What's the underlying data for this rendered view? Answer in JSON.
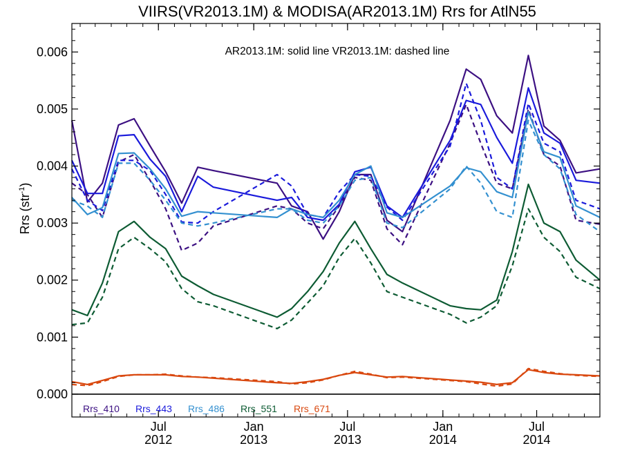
{
  "chart_data": {
    "type": "line",
    "title": "VIIRS(VR2013.1M) & MODISA(AR2013.1M)  Rrs for AtlN55",
    "annotation": "AR2013.1M: solid line   VR2013.1M: dashed line",
    "ylabel_main": "Rrs (str",
    "ylabel_sup": "-1",
    "ylabel_tail": ")",
    "xlim": [
      "2012-01-16",
      "2014-10-31"
    ],
    "ylim": [
      -0.0004,
      0.0065
    ],
    "yticks": [
      0.0,
      0.001,
      0.002,
      0.003,
      0.004,
      0.005,
      0.006
    ],
    "ytick_labels": [
      "0.000",
      "0.001",
      "0.002",
      "0.003",
      "0.004",
      "0.005",
      "0.006"
    ],
    "xticks": [
      {
        "date": "2012-07-01",
        "month": "Jul",
        "year": "2012"
      },
      {
        "date": "2013-01-01",
        "month": "Jan",
        "year": "2013"
      },
      {
        "date": "2013-07-01",
        "month": "Jul",
        "year": "2013"
      },
      {
        "date": "2014-01-01",
        "month": "Jan",
        "year": "2014"
      },
      {
        "date": "2014-07-01",
        "month": "Jul",
        "year": "2014"
      }
    ],
    "zero_line": 0.0,
    "series": [
      {
        "name": "Rrs_410",
        "color": "#3c1082",
        "solid": {
          "x": [
            "2012-01-16",
            "2012-02-15",
            "2012-03-15",
            "2012-04-15",
            "2012-05-15",
            "2012-06-15",
            "2012-07-15",
            "2012-08-15",
            "2012-09-15",
            "2012-10-15",
            "2013-02-15",
            "2013-03-15",
            "2013-04-15",
            "2013-05-15",
            "2013-06-15",
            "2013-07-15",
            "2013-08-15",
            "2013-09-15",
            "2013-10-15",
            "2014-01-15",
            "2014-02-15",
            "2014-03-15",
            "2014-04-15",
            "2014-05-15",
            "2014-06-15",
            "2014-07-15",
            "2014-08-15",
            "2014-09-15",
            "2014-10-31"
          ],
          "y": [
            0.0048,
            0.00337,
            0.0037,
            0.00472,
            0.00483,
            0.00435,
            0.0039,
            0.00335,
            0.00398,
            0.00392,
            0.0037,
            0.0033,
            0.0032,
            0.00272,
            0.0032,
            0.00385,
            0.00385,
            0.00305,
            0.00285,
            0.0048,
            0.0057,
            0.00552,
            0.00488,
            0.00458,
            0.00594,
            0.0047,
            0.00445,
            0.00388,
            0.00395
          ]
        },
        "dashed": {
          "x": [
            "2012-01-16",
            "2012-02-15",
            "2012-03-15",
            "2012-04-15",
            "2012-05-15",
            "2012-06-15",
            "2012-07-15",
            "2012-08-15",
            "2012-09-15",
            "2012-10-15",
            "2013-02-15",
            "2013-03-15",
            "2013-04-15",
            "2013-05-15",
            "2013-06-15",
            "2013-07-15",
            "2013-08-15",
            "2013-09-15",
            "2013-10-15",
            "2014-01-15",
            "2014-02-15",
            "2014-03-15",
            "2014-04-15",
            "2014-05-15",
            "2014-06-15",
            "2014-07-15",
            "2014-08-15",
            "2014-09-15",
            "2014-10-31"
          ],
          "y": [
            0.0037,
            0.0035,
            0.0031,
            0.00407,
            0.0042,
            0.00375,
            0.00325,
            0.00252,
            0.00265,
            0.00295,
            0.0033,
            0.00325,
            0.003,
            0.0029,
            0.0033,
            0.0038,
            0.00375,
            0.0029,
            0.00262,
            0.0044,
            0.00508,
            0.0044,
            0.0037,
            0.0036,
            0.005,
            0.0042,
            0.004,
            0.00305,
            0.00298
          ]
        }
      },
      {
        "name": "Rrs_443",
        "color": "#1a1adb",
        "solid": {
          "x": [
            "2012-01-16",
            "2012-02-15",
            "2012-03-15",
            "2012-04-15",
            "2012-05-15",
            "2012-06-15",
            "2012-07-15",
            "2012-08-15",
            "2012-09-15",
            "2012-10-15",
            "2013-02-15",
            "2013-03-15",
            "2013-04-15",
            "2013-05-15",
            "2013-06-15",
            "2013-07-15",
            "2013-08-15",
            "2013-09-15",
            "2013-10-15",
            "2014-01-15",
            "2014-02-15",
            "2014-03-15",
            "2014-04-15",
            "2014-05-15",
            "2014-06-15",
            "2014-07-15",
            "2014-08-15",
            "2014-09-15",
            "2014-10-31"
          ],
          "y": [
            0.0041,
            0.00352,
            0.00352,
            0.00453,
            0.00455,
            0.00412,
            0.00382,
            0.0032,
            0.00382,
            0.00363,
            0.0034,
            0.00345,
            0.0031,
            0.00305,
            0.00333,
            0.0039,
            0.00398,
            0.0033,
            0.0031,
            0.00445,
            0.00515,
            0.00508,
            0.0045,
            0.00405,
            0.00537,
            0.00458,
            0.0044,
            0.00375,
            0.0037
          ]
        },
        "dashed": {
          "x": [
            "2012-01-16",
            "2012-02-15",
            "2012-03-15",
            "2012-04-15",
            "2012-05-15",
            "2012-06-15",
            "2012-07-15",
            "2012-08-15",
            "2012-09-15",
            "2012-10-15",
            "2013-02-15",
            "2013-03-15",
            "2013-04-15",
            "2013-05-15",
            "2013-06-15",
            "2013-07-15",
            "2013-08-15",
            "2013-09-15",
            "2013-10-15",
            "2014-01-15",
            "2014-02-15",
            "2014-03-15",
            "2014-04-15",
            "2014-05-15",
            "2014-06-15",
            "2014-07-15",
            "2014-08-15",
            "2014-09-15",
            "2014-10-31"
          ],
          "y": [
            0.00395,
            0.0034,
            0.00322,
            0.0041,
            0.0041,
            0.00392,
            0.0035,
            0.00302,
            0.003,
            0.0032,
            0.00385,
            0.00365,
            0.00315,
            0.0031,
            0.00355,
            0.00385,
            0.00382,
            0.00328,
            0.00305,
            0.00435,
            0.00545,
            0.0048,
            0.0038,
            0.0036,
            0.0051,
            0.0044,
            0.00425,
            0.0034,
            0.00325
          ]
        }
      },
      {
        "name": "Rrs_486",
        "color": "#3390d0",
        "solid": {
          "x": [
            "2012-01-16",
            "2012-02-15",
            "2012-03-15",
            "2012-04-15",
            "2012-05-15",
            "2012-06-15",
            "2012-07-15",
            "2012-08-15",
            "2012-09-15",
            "2012-10-15",
            "2013-02-15",
            "2013-03-15",
            "2013-04-15",
            "2013-05-15",
            "2013-06-15",
            "2013-07-15",
            "2013-08-15",
            "2013-09-15",
            "2013-10-15",
            "2014-01-15",
            "2014-02-15",
            "2014-03-15",
            "2014-04-15",
            "2014-05-15",
            "2014-06-15",
            "2014-07-15",
            "2014-08-15",
            "2014-09-15",
            "2014-10-31"
          ],
          "y": [
            0.00345,
            0.00315,
            0.00327,
            0.00422,
            0.00423,
            0.00395,
            0.0036,
            0.00312,
            0.0032,
            0.00318,
            0.0031,
            0.00325,
            0.00315,
            0.0031,
            0.0034,
            0.00385,
            0.004,
            0.00318,
            0.0031,
            0.00365,
            0.00397,
            0.0039,
            0.00355,
            0.00345,
            0.00495,
            0.00425,
            0.00415,
            0.0033,
            0.0031
          ]
        },
        "dashed": {
          "x": [
            "2012-01-16",
            "2012-02-15",
            "2012-03-15",
            "2012-04-15",
            "2012-05-15",
            "2012-06-15",
            "2012-07-15",
            "2012-08-15",
            "2012-09-15",
            "2012-10-15",
            "2013-02-15",
            "2013-03-15",
            "2013-04-15",
            "2013-05-15",
            "2013-06-15",
            "2013-07-15",
            "2013-08-15",
            "2013-09-15",
            "2013-10-15",
            "2014-01-15",
            "2014-02-15",
            "2014-03-15",
            "2014-04-15",
            "2014-05-15",
            "2014-06-15",
            "2014-07-15",
            "2014-08-15",
            "2014-09-15",
            "2014-10-31"
          ],
          "y": [
            0.0034,
            0.0033,
            0.0031,
            0.00405,
            0.00405,
            0.00375,
            0.0034,
            0.003,
            0.00295,
            0.003,
            0.00325,
            0.00325,
            0.00305,
            0.003,
            0.0033,
            0.00375,
            0.0038,
            0.003,
            0.00292,
            0.0036,
            0.004,
            0.0037,
            0.0032,
            0.0031,
            0.0048,
            0.0042,
            0.00395,
            0.00315,
            0.00285
          ]
        }
      },
      {
        "name": "Rrs_551",
        "color": "#0d5b33",
        "solid": {
          "x": [
            "2012-01-16",
            "2012-02-15",
            "2012-03-15",
            "2012-04-15",
            "2012-05-15",
            "2012-06-15",
            "2012-07-15",
            "2012-08-15",
            "2012-09-15",
            "2012-10-15",
            "2013-02-15",
            "2013-03-15",
            "2013-04-15",
            "2013-05-15",
            "2013-06-15",
            "2013-07-15",
            "2013-08-15",
            "2013-09-15",
            "2013-10-15",
            "2014-01-15",
            "2014-02-15",
            "2014-03-15",
            "2014-04-15",
            "2014-05-15",
            "2014-06-15",
            "2014-07-15",
            "2014-08-15",
            "2014-09-15",
            "2014-10-31"
          ],
          "y": [
            0.00148,
            0.00138,
            0.00195,
            0.00285,
            0.00303,
            0.00275,
            0.00255,
            0.00207,
            0.0019,
            0.00175,
            0.00135,
            0.0015,
            0.0018,
            0.00215,
            0.00265,
            0.00303,
            0.00255,
            0.0021,
            0.00195,
            0.00155,
            0.0015,
            0.00148,
            0.00165,
            0.0025,
            0.00368,
            0.003,
            0.00285,
            0.00235,
            0.002
          ]
        },
        "dashed": {
          "x": [
            "2012-01-16",
            "2012-02-15",
            "2012-03-15",
            "2012-04-15",
            "2012-05-15",
            "2012-06-15",
            "2012-07-15",
            "2012-08-15",
            "2012-09-15",
            "2012-10-15",
            "2013-02-15",
            "2013-03-15",
            "2013-04-15",
            "2013-05-15",
            "2013-06-15",
            "2013-07-15",
            "2013-08-15",
            "2013-09-15",
            "2013-10-15",
            "2014-01-15",
            "2014-02-15",
            "2014-03-15",
            "2014-04-15",
            "2014-05-15",
            "2014-06-15",
            "2014-07-15",
            "2014-08-15",
            "2014-09-15",
            "2014-10-31"
          ],
          "y": [
            0.00122,
            0.00125,
            0.0017,
            0.00255,
            0.00275,
            0.00255,
            0.00232,
            0.00185,
            0.00162,
            0.00155,
            0.00115,
            0.0013,
            0.0016,
            0.0019,
            0.0024,
            0.00273,
            0.0023,
            0.0018,
            0.0017,
            0.0014,
            0.00125,
            0.00135,
            0.00155,
            0.00225,
            0.00325,
            0.00275,
            0.0025,
            0.00205,
            0.00185
          ]
        }
      },
      {
        "name": "Rrs_671",
        "color": "#d9480f",
        "solid": {
          "x": [
            "2012-01-16",
            "2012-02-15",
            "2012-03-15",
            "2012-04-15",
            "2012-05-15",
            "2012-06-15",
            "2012-07-15",
            "2012-08-15",
            "2012-09-15",
            "2012-10-15",
            "2013-02-15",
            "2013-03-15",
            "2013-04-15",
            "2013-05-15",
            "2013-06-15",
            "2013-07-15",
            "2013-08-15",
            "2013-09-15",
            "2013-10-15",
            "2014-01-15",
            "2014-02-15",
            "2014-03-15",
            "2014-04-15",
            "2014-05-15",
            "2014-06-15",
            "2014-07-15",
            "2014-08-15",
            "2014-09-15",
            "2014-10-31"
          ],
          "y": [
            0.00022,
            0.00017,
            0.00024,
            0.00032,
            0.00034,
            0.00034,
            0.00034,
            0.00031,
            0.0003,
            0.00028,
            0.0002,
            0.00019,
            0.00022,
            0.00026,
            0.00033,
            0.00038,
            0.00034,
            0.0003,
            0.00031,
            0.00025,
            0.00023,
            0.00021,
            0.00017,
            0.0002,
            0.00043,
            0.00038,
            0.00035,
            0.00034,
            0.00032
          ]
        },
        "dashed": {
          "x": [
            "2012-01-16",
            "2012-02-15",
            "2012-03-15",
            "2012-04-15",
            "2012-05-15",
            "2012-06-15",
            "2012-07-15",
            "2012-08-15",
            "2012-09-15",
            "2012-10-15",
            "2013-02-15",
            "2013-03-15",
            "2013-04-15",
            "2013-05-15",
            "2013-06-15",
            "2013-07-15",
            "2013-08-15",
            "2013-09-15",
            "2013-10-15",
            "2014-01-15",
            "2014-02-15",
            "2014-03-15",
            "2014-04-15",
            "2014-05-15",
            "2014-06-15",
            "2014-07-15",
            "2014-08-15",
            "2014-09-15",
            "2014-10-31"
          ],
          "y": [
            0.00017,
            0.00015,
            0.00022,
            0.00031,
            0.00034,
            0.00034,
            0.00035,
            0.00032,
            0.0003,
            0.00029,
            0.00022,
            0.00018,
            0.0002,
            0.00025,
            0.00033,
            0.0004,
            0.00035,
            0.00029,
            0.0003,
            0.00024,
            0.00022,
            0.00018,
            0.00014,
            0.00018,
            0.00045,
            0.0004,
            0.00036,
            0.00033,
            0.00031
          ]
        }
      }
    ]
  }
}
